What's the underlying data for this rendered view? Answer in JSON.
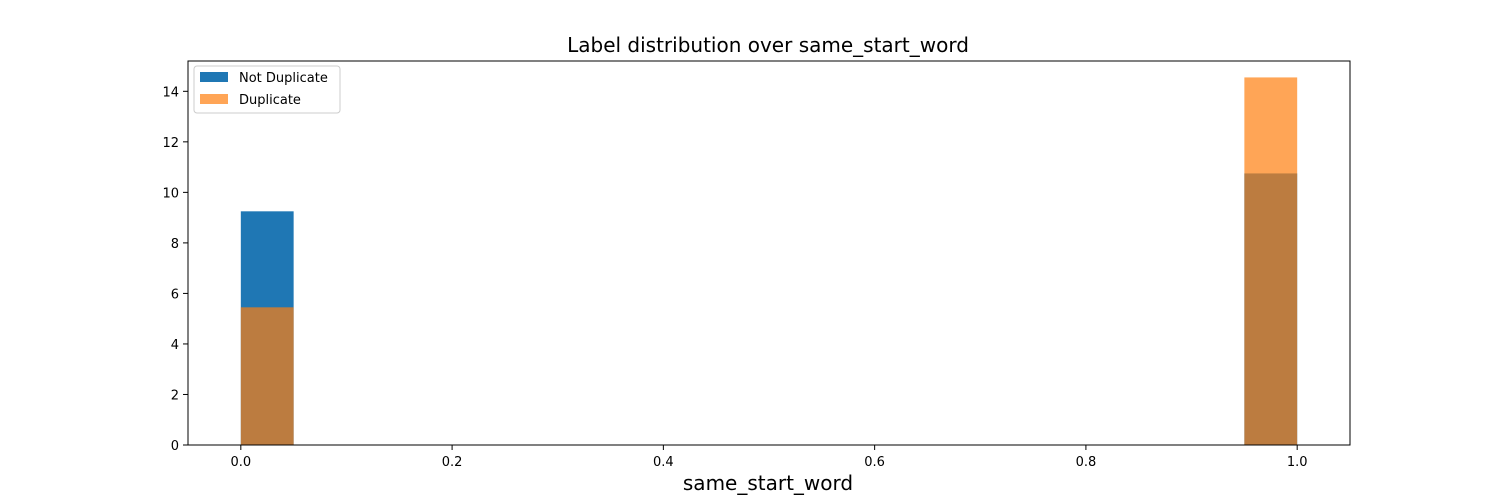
{
  "chart_data": {
    "type": "bar",
    "title": "Label distribution over same_start_word",
    "xlabel": "same_start_word",
    "ylabel": "",
    "xlim": [
      -0.05,
      1.05
    ],
    "ylim": [
      0,
      15.2
    ],
    "x_ticks": [
      "0.0",
      "0.2",
      "0.4",
      "0.6",
      "0.8",
      "1.0"
    ],
    "x_tick_values": [
      0.0,
      0.2,
      0.4,
      0.6,
      0.8,
      1.0
    ],
    "y_ticks": [
      "0",
      "2",
      "4",
      "6",
      "8",
      "10",
      "12",
      "14"
    ],
    "y_tick_values": [
      0,
      2,
      4,
      6,
      8,
      10,
      12,
      14
    ],
    "bin_width": 0.05,
    "grid": false,
    "legend_position": "top-left",
    "series": [
      {
        "name": "Not Duplicate",
        "color": "#1f77b4",
        "opacity": 1.0,
        "bins": [
          {
            "x_start": 0.0,
            "value": 9.25
          },
          {
            "x_start": 0.95,
            "value": 10.75
          }
        ]
      },
      {
        "name": "Duplicate",
        "color": "#ff7f0e",
        "opacity": 0.7,
        "bins": [
          {
            "x_start": 0.0,
            "value": 5.45
          },
          {
            "x_start": 0.95,
            "value": 14.55
          }
        ]
      }
    ]
  }
}
